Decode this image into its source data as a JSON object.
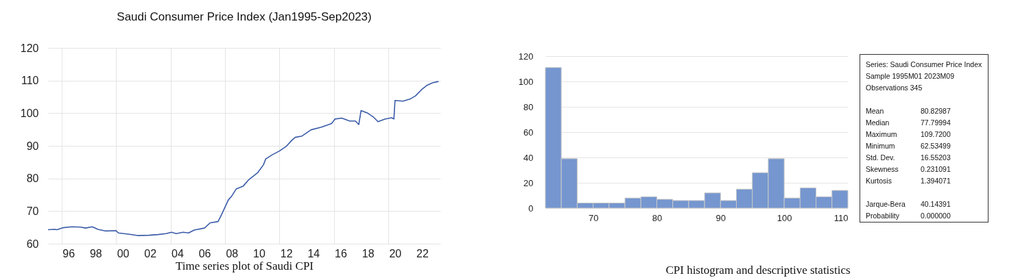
{
  "chart_data": [
    {
      "type": "line",
      "title": "Saudi Consumer Price Index (Jan1995-Sep2023)",
      "xlabel": "Time series plot of Saudi CPI",
      "xlim": [
        "1995-01",
        "2023-11"
      ],
      "ylim": [
        60,
        120
      ],
      "yticks": [
        60,
        70,
        80,
        90,
        100,
        110,
        120
      ],
      "xticks": [
        {
          "value": "1996-01",
          "label": null
        },
        {
          "value": "2000-01",
          "label": null
        },
        {
          "value": "2004-01",
          "label": null
        },
        {
          "value": "2008-01",
          "label": null
        },
        {
          "value": "2012-01",
          "label": null
        },
        {
          "value": "2016-01",
          "label": null
        },
        {
          "value": "2020-01",
          "label": null
        },
        {
          "value": "1996-07",
          "label": "96"
        },
        {
          "value": "1998-07",
          "label": "98"
        },
        {
          "value": "2000-07",
          "label": "00"
        },
        {
          "value": "2002-07",
          "label": "02"
        },
        {
          "value": "2004-07",
          "label": "04"
        },
        {
          "value": "2006-07",
          "label": "06"
        },
        {
          "value": "2008-07",
          "label": "08"
        },
        {
          "value": "2010-07",
          "label": "10"
        },
        {
          "value": "2012-07",
          "label": "12"
        },
        {
          "value": "2014-07",
          "label": "14"
        },
        {
          "value": "2016-07",
          "label": "16"
        },
        {
          "value": "2018-07",
          "label": "18"
        },
        {
          "value": "2020-07",
          "label": "20"
        },
        {
          "value": "2022-07",
          "label": "22"
        }
      ],
      "grid": true,
      "x": [
        "1995-01",
        "1995-07",
        "1995-09",
        "1996-02",
        "1996-10",
        "1997-06",
        "1997-10",
        "1998-04",
        "1998-09",
        "1999-04",
        "2000-01",
        "2000-03",
        "2001-01",
        "2001-08",
        "2002-06",
        "2003-02",
        "2003-09",
        "2004-02",
        "2004-06",
        "2004-12",
        "2005-05",
        "2005-10",
        "2006-07",
        "2006-12",
        "2007-07",
        "2007-10",
        "2008-04",
        "2008-07",
        "2008-11",
        "2009-05",
        "2009-10",
        "2010-06",
        "2010-11",
        "2011-01",
        "2011-07",
        "2012-01",
        "2012-07",
        "2012-12",
        "2013-03",
        "2013-09",
        "2014-05",
        "2015-02",
        "2015-11",
        "2016-02",
        "2016-08",
        "2017-03",
        "2017-08",
        "2017-11",
        "2018-01",
        "2018-07",
        "2018-12",
        "2019-04",
        "2019-10",
        "2020-04",
        "2020-06",
        "2020-07",
        "2021-02",
        "2021-08",
        "2022-01",
        "2022-07",
        "2022-11",
        "2023-04",
        "2023-09"
      ],
      "series": [
        {
          "color": "#3a5ba8",
          "values": [
            64.3,
            64.4,
            64.3,
            64.9,
            65.2,
            65.1,
            64.8,
            65.2,
            64.4,
            63.9,
            64.0,
            63.3,
            62.9,
            62.5,
            62.6,
            62.8,
            63.1,
            63.5,
            63.1,
            63.5,
            63.3,
            64.2,
            64.8,
            66.4,
            66.8,
            68.9,
            73.4,
            74.6,
            76.8,
            77.6,
            79.6,
            81.8,
            84.2,
            86.0,
            87.3,
            88.4,
            89.8,
            91.7,
            92.6,
            93.0,
            94.9,
            95.7,
            96.8,
            98.2,
            98.5,
            97.6,
            97.6,
            96.5,
            100.8,
            100.0,
            98.8,
            97.4,
            98.2,
            98.6,
            98.2,
            103.9,
            103.7,
            104.3,
            105.3,
            107.4,
            108.5,
            109.3,
            109.7
          ]
        }
      ]
    },
    {
      "type": "histogram",
      "annotations": [
        "CPI histogram and descriptive statistics"
      ],
      "bins": [
        62.5,
        65,
        67.5,
        70,
        72.5,
        75,
        77.5,
        80,
        82.5,
        85,
        87.5,
        90,
        92.5,
        95,
        97.5,
        100,
        102.5,
        105,
        107.5,
        110
      ],
      "values": [
        111,
        39,
        4,
        4,
        4,
        8,
        9,
        7,
        6,
        6,
        12,
        6,
        15,
        28,
        39,
        8,
        16,
        9,
        14
      ],
      "color": "#7596cf",
      "xlim": [
        62.5,
        110
      ],
      "xticks": [
        70,
        80,
        90,
        100,
        110
      ],
      "ylim": [
        0,
        120
      ],
      "yticks": [
        0,
        20,
        40,
        60,
        80,
        100,
        120
      ],
      "grid": "y"
    },
    {
      "type": "other",
      "title": "Series: Saudi Consumer Price Index",
      "annotations": [
        "Sample 1995M01 2023M09",
        "Observations 345"
      ],
      "categories": [
        "Mean",
        "Median",
        "Maximum",
        "Minimum",
        "Std. Dev.",
        "Skewness",
        "Kurtosis",
        "Jarque-Bera",
        "Probability"
      ],
      "value_labels": [
        "80.82987",
        "77.79994",
        "109.7200",
        "62.53499",
        "16.55203",
        "0.231091",
        "1.394071",
        "40.14391",
        "0.000000"
      ]
    }
  ]
}
